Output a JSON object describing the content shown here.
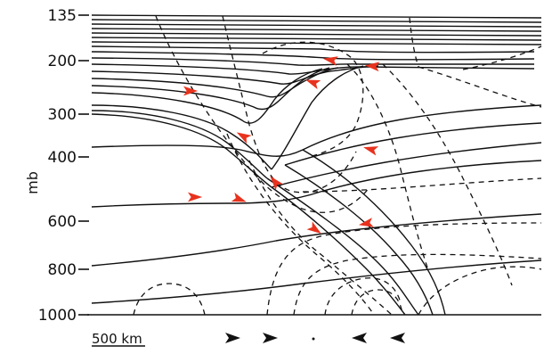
{
  "figure": {
    "y_axis_unit": "mb",
    "pressure_levels": [
      "135",
      "200",
      "300",
      "400",
      "600",
      "800",
      "1000"
    ],
    "scale_bar_label": "500 km",
    "arrow_color": "#e8321e",
    "line_color": "#111111"
  }
}
